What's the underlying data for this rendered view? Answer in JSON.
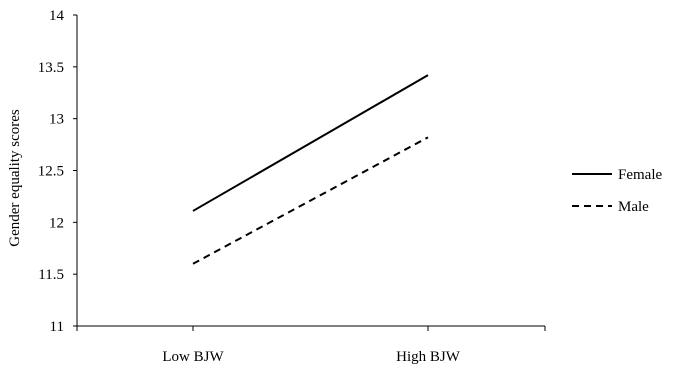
{
  "chart_data": {
    "type": "line",
    "title": "",
    "xlabel": "",
    "ylabel": "Gender equality scores",
    "categories": [
      "Low BJW",
      "High BJW"
    ],
    "ylim": [
      11,
      14
    ],
    "yticks": [
      11,
      11.5,
      12,
      12.5,
      13,
      13.5,
      14
    ],
    "ytick_labels": [
      "11",
      "11.5",
      "12",
      "12.5",
      "13",
      "13.5",
      "14"
    ],
    "grid": false,
    "legend_position": "right",
    "series": [
      {
        "name": "Female",
        "values": [
          12.11,
          13.42
        ],
        "line_style": "solid",
        "color": "#000000"
      },
      {
        "name": "Male",
        "values": [
          11.6,
          12.82
        ],
        "line_style": "dashed",
        "color": "#000000"
      }
    ]
  }
}
